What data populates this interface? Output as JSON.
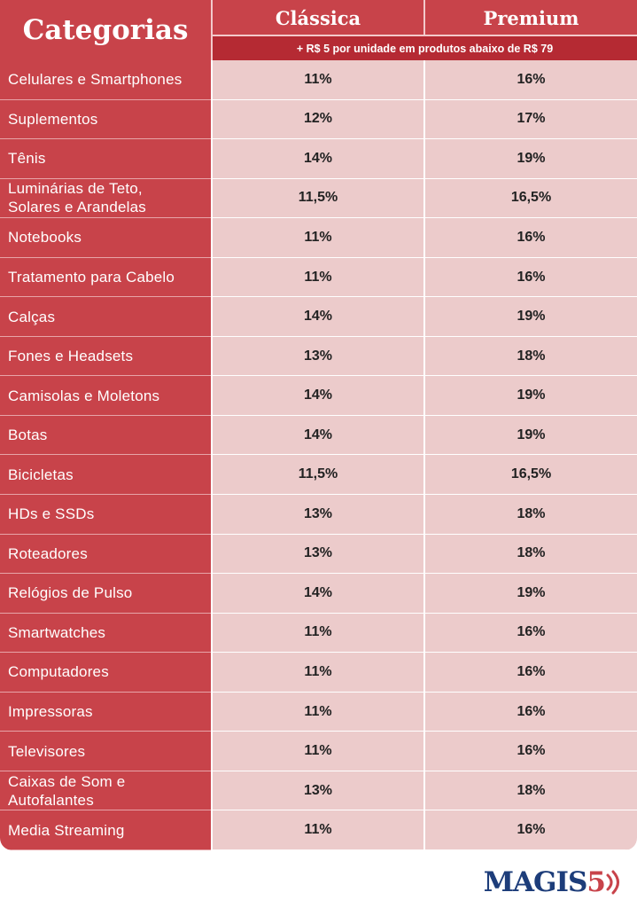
{
  "header": {
    "categories_label": "Categorias",
    "col1_label": "Clássica",
    "col2_label": "Premium",
    "note": "+ R$ 5 por unidade em produtos abaixo de R$ 79"
  },
  "rows": [
    {
      "category": "Celulares e Smartphones",
      "classica": "11%",
      "premium": "16%"
    },
    {
      "category": "Suplementos",
      "classica": "12%",
      "premium": "17%"
    },
    {
      "category": "Tênis",
      "classica": "14%",
      "premium": "19%"
    },
    {
      "category": "Luminárias de Teto,\nSolares e Arandelas",
      "classica": "11,5%",
      "premium": "16,5%"
    },
    {
      "category": "Notebooks",
      "classica": "11%",
      "premium": "16%"
    },
    {
      "category": "Tratamento para Cabelo",
      "classica": "11%",
      "premium": "16%"
    },
    {
      "category": "Calças",
      "classica": "14%",
      "premium": "19%"
    },
    {
      "category": "Fones e Headsets",
      "classica": "13%",
      "premium": "18%"
    },
    {
      "category": "Camisolas e Moletons",
      "classica": "14%",
      "premium": "19%"
    },
    {
      "category": "Botas",
      "classica": "14%",
      "premium": "19%"
    },
    {
      "category": "Bicicletas",
      "classica": "11,5%",
      "premium": "16,5%"
    },
    {
      "category": "HDs e SSDs",
      "classica": "13%",
      "premium": "18%"
    },
    {
      "category": "Roteadores",
      "classica": "13%",
      "premium": "18%"
    },
    {
      "category": "Relógios de Pulso",
      "classica": "14%",
      "premium": "19%"
    },
    {
      "category": "Smartwatches",
      "classica": "11%",
      "premium": "16%"
    },
    {
      "category": "Computadores",
      "classica": "11%",
      "premium": "16%"
    },
    {
      "category": "Impressoras",
      "classica": "11%",
      "premium": "16%"
    },
    {
      "category": "Televisores",
      "classica": "11%",
      "premium": "16%"
    },
    {
      "category": "Caixas de Som e\nAutofalantes",
      "classica": "13%",
      "premium": "18%"
    },
    {
      "category": "Media Streaming",
      "classica": "11%",
      "premium": "16%"
    }
  ],
  "logo": {
    "text": "MAGIS",
    "number": "5"
  },
  "colors": {
    "brand_red": "#c8434a",
    "dark_red": "#b52a33",
    "cell_pink": "#eccbcb",
    "logo_blue": "#1d3d7a"
  }
}
